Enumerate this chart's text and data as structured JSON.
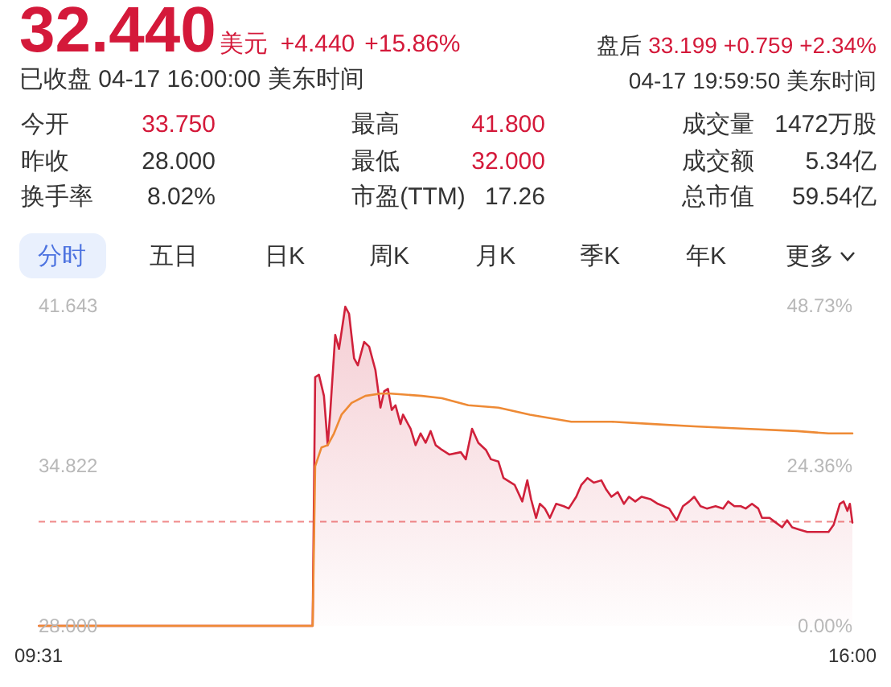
{
  "chart_data": [
    {
      "type": "other",
      "title": "32.440",
      "subtitle": "已收盘 04-17 16:00:00 美东时间",
      "annotations": [
        "美元",
        "+4.440",
        "+15.86%",
        "盘后",
        "33.199",
        "+0.759",
        "+2.34%",
        "04-17 19:59:50 美东时间",
        "今开",
        "33.750",
        "最高",
        "41.800",
        "成交量",
        "1472万股",
        "昨收",
        "28.000",
        "最低",
        "32.000",
        "成交额",
        "5.34亿",
        "换手率",
        "8.02%",
        "市盈(TTM)",
        "17.26",
        "总市值",
        "59.54亿",
        "分时",
        "五日",
        "日K",
        "周K",
        "月K",
        "季K",
        "年K",
        "更多"
      ]
    },
    {
      "type": "line",
      "xlim": [
        9.5167,
        16
      ],
      "xticks": [
        {
          "value": 9.5167,
          "label": "09:31"
        },
        {
          "value": 16,
          "label": "16:00"
        }
      ],
      "ylim": [
        28,
        41.643
      ],
      "yticks": [
        {
          "value": 28,
          "label": "28.000"
        },
        {
          "value": 34.822,
          "label": "34.822"
        },
        {
          "value": 41.643,
          "label": "41.643"
        }
      ],
      "y2lim": [
        0,
        48.73
      ],
      "y2ticks": [
        {
          "value": 0,
          "label": "0.00%"
        },
        {
          "value": 24.36,
          "label": "24.36%"
        },
        {
          "value": 48.73,
          "label": "48.73%"
        }
      ],
      "ref_lines": [
        {
          "axis": "y",
          "value": 32.44,
          "color": "#f08a8a",
          "line_style": "dashed"
        }
      ],
      "series": [
        {
          "type": "area",
          "color": "#d0213b",
          "x": [
            9.52,
            11.7,
            11.72,
            11.75,
            11.79,
            11.82,
            11.84,
            11.88,
            11.91,
            11.96,
            11.99,
            12.03,
            12.06,
            12.11,
            12.15,
            12.2,
            12.24,
            12.27,
            12.3,
            12.33,
            12.36,
            12.4,
            12.42,
            12.48,
            12.52,
            12.56,
            12.6,
            12.64,
            12.68,
            12.73,
            12.79,
            12.88,
            12.92,
            12.97,
            13.02,
            13.08,
            13.12,
            13.18,
            13.22,
            13.31,
            13.37,
            13.41,
            13.44,
            13.48,
            13.51,
            13.55,
            13.59,
            13.64,
            13.7,
            13.74,
            13.8,
            13.84,
            13.89,
            13.94,
            14.0,
            14.04,
            14.08,
            14.13,
            14.18,
            14.22,
            14.27,
            14.32,
            14.39,
            14.45,
            14.54,
            14.6,
            14.65,
            14.7,
            14.74,
            14.79,
            14.84,
            14.91,
            14.97,
            15.01,
            15.06,
            15.11,
            15.15,
            15.2,
            15.25,
            15.28,
            15.34,
            15.39,
            15.44,
            15.48,
            15.52,
            15.58,
            15.64,
            15.73,
            15.81,
            15.85,
            15.9,
            15.93,
            15.96,
            15.98,
            16.0
          ],
          "values": [
            28.0,
            28.0,
            38.6,
            38.7,
            37.8,
            35.7,
            37.1,
            40.4,
            39.8,
            41.6,
            41.3,
            39.4,
            39.1,
            40.1,
            39.9,
            38.9,
            37.3,
            38.0,
            38.1,
            37.2,
            37.4,
            36.6,
            37.0,
            36.4,
            35.7,
            36.2,
            35.8,
            36.3,
            35.7,
            35.5,
            35.3,
            35.4,
            35.1,
            36.4,
            35.8,
            35.5,
            35.1,
            35.0,
            34.3,
            34.0,
            33.3,
            34.2,
            33.4,
            32.6,
            33.2,
            33.0,
            32.6,
            33.2,
            33.1,
            33.0,
            33.5,
            34.0,
            34.3,
            34.1,
            34.2,
            33.8,
            33.5,
            33.7,
            33.2,
            33.5,
            33.3,
            33.5,
            33.4,
            33.2,
            33.0,
            32.5,
            33.1,
            33.3,
            33.5,
            33.1,
            33.0,
            33.1,
            33.0,
            33.3,
            33.1,
            33.1,
            33.0,
            33.2,
            33.0,
            32.6,
            32.6,
            32.4,
            32.2,
            32.5,
            32.2,
            32.1,
            32.0,
            32.0,
            32.0,
            32.3,
            33.2,
            33.3,
            32.9,
            33.2,
            32.4
          ]
        },
        {
          "type": "line",
          "color": "#ee8a35",
          "x": [
            9.52,
            11.7,
            11.72,
            11.77,
            11.82,
            11.87,
            11.93,
            12.01,
            12.12,
            12.24,
            12.32,
            12.57,
            12.73,
            12.94,
            13.18,
            13.43,
            13.76,
            14.08,
            14.41,
            14.74,
            15.15,
            15.56,
            15.81,
            16.0
          ],
          "values": [
            28.0,
            28.0,
            34.8,
            35.6,
            35.7,
            36.2,
            37.0,
            37.5,
            37.8,
            37.9,
            37.9,
            37.8,
            37.7,
            37.4,
            37.3,
            37.0,
            36.7,
            36.7,
            36.6,
            36.5,
            36.4,
            36.3,
            36.2,
            36.2
          ]
        }
      ]
    }
  ]
}
